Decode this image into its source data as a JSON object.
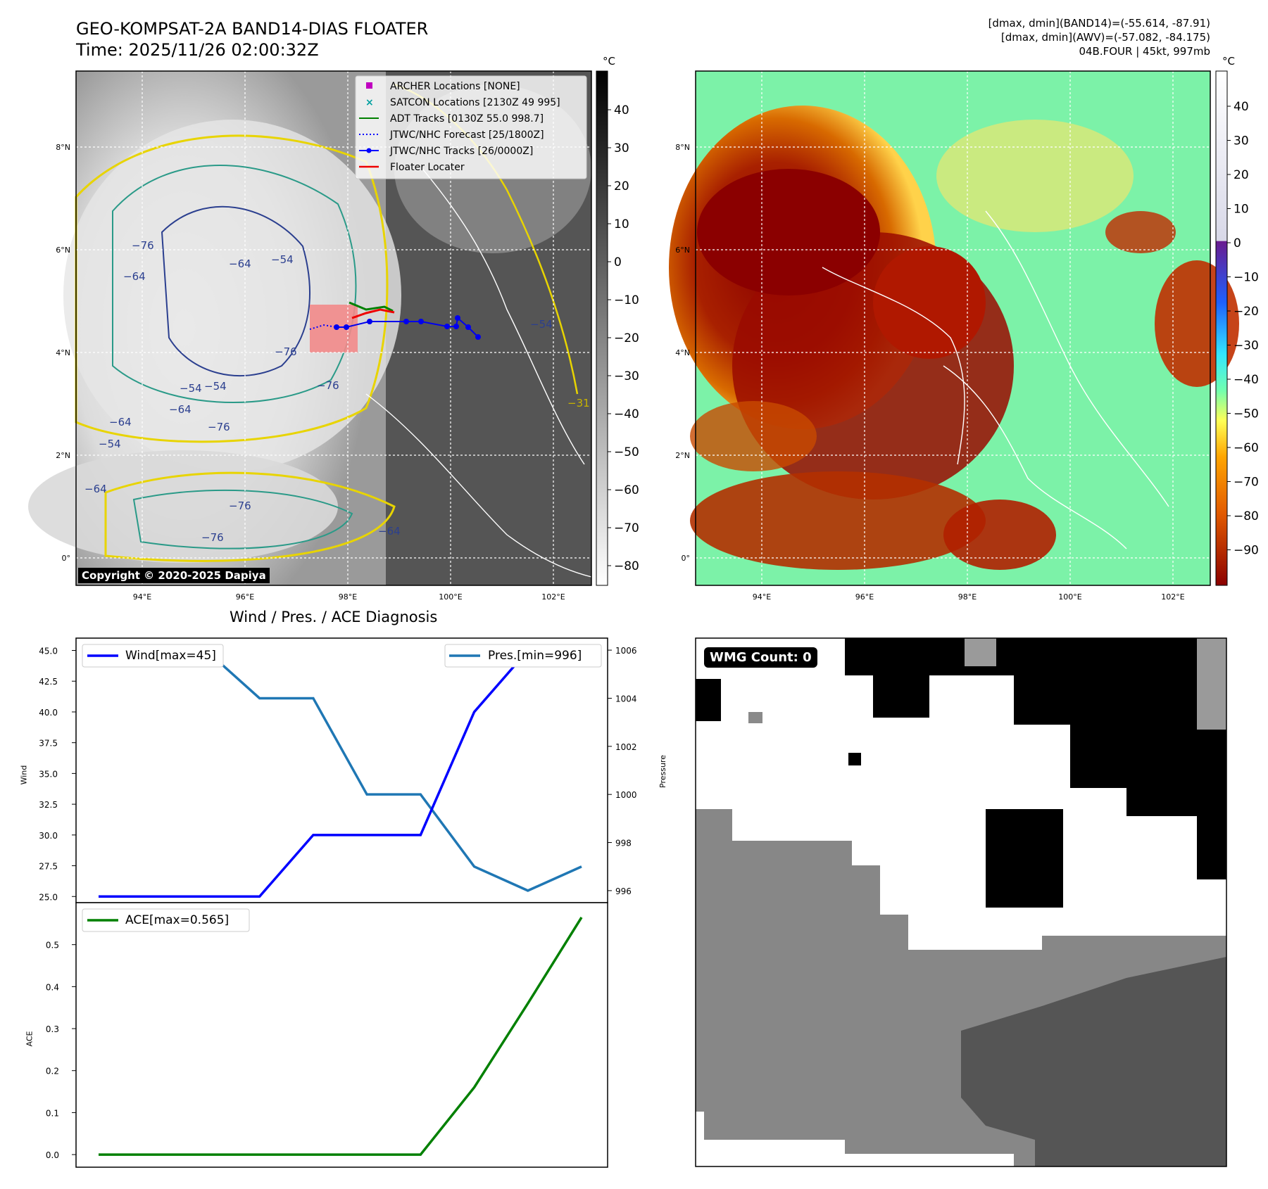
{
  "header": {
    "title_line1": "GEO-KOMPSAT-2A BAND14-DIAS FLOATER",
    "title_line2": "Time: 2025/11/26 02:00:32Z",
    "stat_line1": "[dmax, dmin](BAND14)=(-55.614, -87.91)",
    "stat_line2": "[dmax, dmin](AWV)=(-57.082, -84.175)",
    "stat_line3": "04B.FOUR | 45kt, 997mb"
  },
  "watermark": "Copyright © 2020-2025 Dapiya",
  "wmg_label": "WMG Count: 0",
  "colors": {
    "track": "#0000ee",
    "adt": "#008000",
    "floater": "#ee0000",
    "wind_line": "#0000ff",
    "pres_line": "#1f77b4",
    "ace_line": "#008000",
    "archer": "#c000c0",
    "satcon": "#00a0a0"
  },
  "map_panel": {
    "lon_labels": [
      "94°E",
      "96°E",
      "98°E",
      "100°E",
      "102°E"
    ],
    "lat_labels": [
      "8°N",
      "6°N",
      "4°N",
      "2°N",
      "0°"
    ],
    "colorbar_unit": "°C",
    "colorbar_ticks": [
      "40",
      "30",
      "20",
      "10",
      "0",
      "−10",
      "−20",
      "−30",
      "−40",
      "−50",
      "−60",
      "−70",
      "−80"
    ],
    "contour_labels": [
      "−76",
      "−64",
      "−54",
      "−64",
      "−76",
      "−54",
      "−64",
      "−54",
      "−76",
      "−64",
      "−76",
      "−76",
      "−64",
      "−54",
      "−31",
      "−54",
      "−64",
      "−76"
    ],
    "legend": [
      {
        "label": "ARCHER Locations [NONE]",
        "marker": "square"
      },
      {
        "label": "SATCON Locations [2130Z 49 995]",
        "marker": "x"
      },
      {
        "label": "ADT Tracks [0130Z 55.0 998.7]",
        "marker": "line-green"
      },
      {
        "label": "JTWC/NHC Forecast [25/1800Z]",
        "marker": "dotted-blue"
      },
      {
        "label": "JTWC/NHC Tracks [26/0000Z]",
        "marker": "line-dot-blue"
      },
      {
        "label": "Floater Locater",
        "marker": "line-red"
      }
    ]
  },
  "awv_panel": {
    "lon_labels": [
      "94°E",
      "96°E",
      "98°E",
      "100°E",
      "102°E"
    ],
    "lat_labels": [
      "8°N",
      "6°N",
      "4°N",
      "2°N",
      "0°"
    ],
    "colorbar_unit": "°C",
    "colorbar_ticks": [
      "40",
      "30",
      "20",
      "10",
      "0",
      "−10",
      "−20",
      "−30",
      "−40",
      "−50",
      "−60",
      "−70",
      "−80",
      "−90"
    ]
  },
  "diag_title": "Wind / Pres. / ACE Diagnosis",
  "chart_data": [
    {
      "type": "line",
      "title": "Wind / Pres. / ACE Diagnosis",
      "ylabel": "Wind",
      "y2label": "Pressure",
      "x": [
        0,
        1,
        2,
        3,
        4,
        5,
        6,
        7,
        8,
        9
      ],
      "ylim": [
        24.5,
        46
      ],
      "yticks": [
        "25.0",
        "27.5",
        "30.0",
        "32.5",
        "35.0",
        "37.5",
        "40.0",
        "42.5",
        "45.0"
      ],
      "y2lim": [
        995.5,
        1006.5
      ],
      "y2ticks": [
        "996",
        "998",
        "1000",
        "1002",
        "1004",
        "1006"
      ],
      "series": [
        {
          "name": "Wind[max=45]",
          "axis": "left",
          "values": [
            25,
            25,
            25,
            25,
            30,
            30,
            30,
            40,
            45,
            45
          ]
        },
        {
          "name": "Pres.[min=996]",
          "axis": "right",
          "values": [
            1006,
            1006,
            1006,
            1004,
            1004,
            1000,
            1000,
            997,
            996,
            997
          ]
        }
      ]
    },
    {
      "type": "line",
      "ylabel": "ACE",
      "x": [
        0,
        1,
        2,
        3,
        4,
        5,
        6,
        7,
        8,
        9
      ],
      "ylim": [
        -0.03,
        0.6
      ],
      "yticks": [
        "0.0",
        "0.1",
        "0.2",
        "0.3",
        "0.4",
        "0.5"
      ],
      "series": [
        {
          "name": "ACE[max=0.565]",
          "values": [
            0,
            0,
            0,
            0,
            0,
            0,
            0,
            0.16,
            0.36,
            0.565
          ]
        }
      ]
    }
  ]
}
